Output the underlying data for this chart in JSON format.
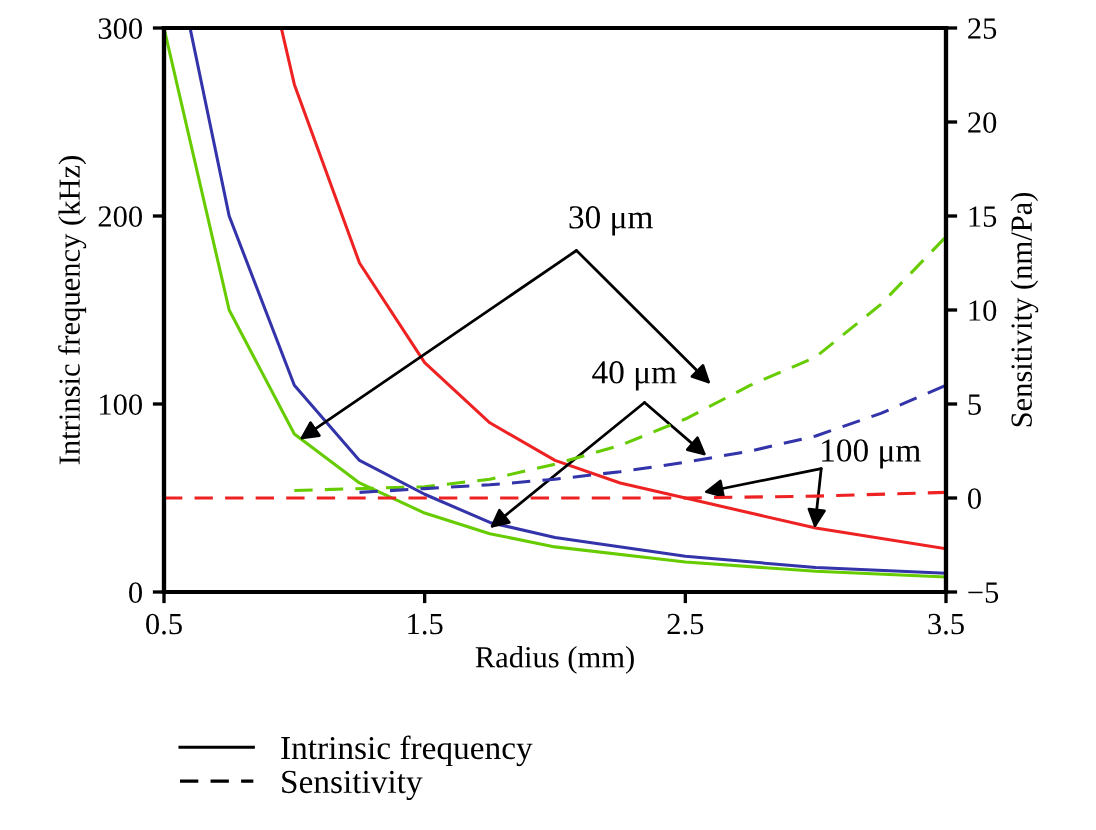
{
  "chart_data": {
    "type": "line",
    "xlabel": "Radius (mm)",
    "ylabel": "Intrinsic frequency (kHz)",
    "y2label": "Sensitivity (nm/Pa)",
    "xlim": [
      0.5,
      3.5
    ],
    "xticks": [
      0.5,
      1.5,
      2.5,
      3.5
    ],
    "ylim": [
      0,
      300
    ],
    "yticks": [
      0,
      100,
      200,
      300
    ],
    "y2lim": [
      -5,
      25
    ],
    "y2ticks": [
      -5,
      0,
      5,
      10,
      15,
      20,
      25
    ],
    "grid": false,
    "marker": "none",
    "series": [
      {
        "color": "#66cc00",
        "line_style": "solid",
        "x": [
          0.5,
          0.75,
          1.0,
          1.25,
          1.5,
          1.75,
          2.0,
          2.5,
          3.0,
          3.5
        ],
        "values": [
          300,
          150,
          84,
          58,
          42,
          31,
          24,
          16,
          11,
          8
        ]
      },
      {
        "color": "#3333aa",
        "line_style": "solid",
        "x": [
          0.6,
          0.75,
          1.0,
          1.25,
          1.5,
          1.75,
          2.0,
          2.5,
          3.0,
          3.5
        ],
        "values": [
          300,
          200,
          110,
          70,
          52,
          37,
          29,
          19,
          13,
          10
        ]
      },
      {
        "color": "#ee2222",
        "line_style": "solid",
        "x": [
          0.95,
          1.0,
          1.25,
          1.5,
          1.75,
          2.0,
          2.25,
          2.5,
          3.0,
          3.5
        ],
        "values": [
          300,
          270,
          175,
          122,
          90,
          70,
          58,
          50,
          34,
          23
        ]
      },
      {
        "color": "#66cc00",
        "line_style": "dashed",
        "axis": "y2",
        "x": [
          1.0,
          1.5,
          1.75,
          2.0,
          2.25,
          2.5,
          2.75,
          3.0,
          3.25,
          3.5
        ],
        "values": [
          0.4,
          0.6,
          1.0,
          1.8,
          2.8,
          4.2,
          6.0,
          7.5,
          10.3,
          13.9
        ]
      },
      {
        "color": "#3333aa",
        "line_style": "dashed",
        "axis": "y2",
        "x": [
          1.25,
          1.5,
          1.75,
          2.0,
          2.25,
          2.5,
          2.75,
          3.0,
          3.25,
          3.5
        ],
        "values": [
          0.3,
          0.5,
          0.7,
          1.0,
          1.4,
          1.9,
          2.5,
          3.3,
          4.5,
          6.0
        ]
      },
      {
        "color": "#ee2222",
        "line_style": "dashed",
        "axis": "y2",
        "x": [
          0.5,
          1.0,
          1.5,
          2.0,
          2.5,
          3.0,
          3.5
        ],
        "values": [
          0,
          0,
          0,
          0,
          0,
          0.1,
          0.3
        ]
      }
    ],
    "annotations": [
      {
        "text": "30 μm",
        "x": 1.02,
        "y": 81
      },
      {
        "text": "40 μm",
        "x": 1.75,
        "y": 34
      },
      {
        "text": "100 μm",
        "x": 2.57,
        "y": 53
      },
      "Intrinsic frequency",
      "Sensitivity"
    ]
  }
}
